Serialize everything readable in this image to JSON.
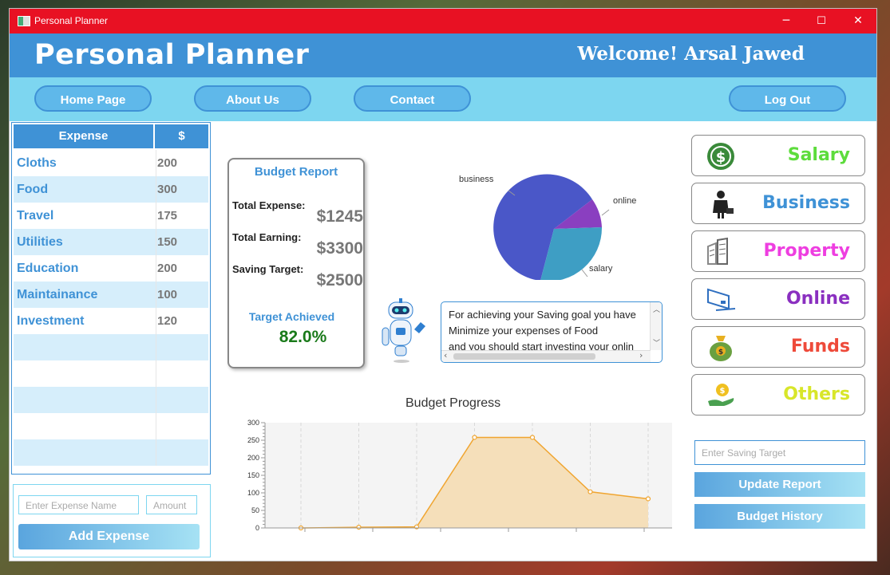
{
  "window": {
    "title": "Personal Planner",
    "minimize": "─",
    "maximize": "☐",
    "close": "✕"
  },
  "header": {
    "app_title": "Personal Planner",
    "welcome": "Welcome! Arsal Jawed"
  },
  "nav": {
    "home": "Home Page",
    "about": "About Us",
    "contact": "Contact",
    "logout": "Log Out"
  },
  "expense_table": {
    "col_name": "Expense",
    "col_value": "$",
    "rows": [
      {
        "name": "Cloths",
        "value": "200"
      },
      {
        "name": "Food",
        "value": "300"
      },
      {
        "name": "Travel",
        "value": "175"
      },
      {
        "name": "Utilities",
        "value": "150"
      },
      {
        "name": "Education",
        "value": "200"
      },
      {
        "name": "Maintainance",
        "value": "100"
      },
      {
        "name": "Investment",
        "value": "120"
      }
    ]
  },
  "add_expense": {
    "name_placeholder": "Enter Expense Name",
    "amount_placeholder": "Amount",
    "button": "Add Expense"
  },
  "budget_report": {
    "title": "Budget Report",
    "total_expense_label": "Total Expense:",
    "total_expense_value": "$1245",
    "total_earning_label": "Total Earning:",
    "total_earning_value": "$3300",
    "saving_target_label": "Saving Target:",
    "saving_target_value": "$2500",
    "target_achieved_label": "Target Achieved",
    "target_achieved_value": "82.0%"
  },
  "pie": {
    "labels": {
      "business": "business",
      "online": "online",
      "salary": "salary"
    },
    "colors": {
      "business": "#4a57c8",
      "online": "#8a3fc0",
      "salary": "#3e9ec4"
    }
  },
  "assistant_message": {
    "lines": [
      "For achieving your Saving goal you have",
      "Minimize your expenses of Food",
      "and you should start investing your onlin"
    ]
  },
  "chart_data": {
    "type": "area",
    "title": "Budget Progress",
    "xlabel": "",
    "ylabel": "",
    "ylim": [
      0,
      300
    ],
    "yticks": [
      0,
      50,
      100,
      150,
      200,
      250,
      300
    ],
    "x": [
      1,
      2,
      3,
      4,
      5,
      6,
      7
    ],
    "values": [
      0,
      2,
      3,
      258,
      258,
      103,
      83
    ],
    "color": "#f0a530",
    "fill": "#f5dfba"
  },
  "categories": [
    {
      "label": "Salary",
      "color": "#5ddc3c",
      "icon": "dollar-coin-icon"
    },
    {
      "label": "Business",
      "color": "#3f92d6",
      "icon": "businessman-icon"
    },
    {
      "label": "Property",
      "color": "#ee3ee0",
      "icon": "buildings-icon"
    },
    {
      "label": "Online",
      "color": "#8a2fc0",
      "icon": "laptop-icon"
    },
    {
      "label": "Funds",
      "color": "#ee4a3a",
      "icon": "money-bag-icon"
    },
    {
      "label": "Others",
      "color": "#d8e62a",
      "icon": "coin-hand-icon"
    }
  ],
  "saving": {
    "placeholder": "Enter Saving Target",
    "update_button": "Update Report",
    "history_button": "Budget History"
  }
}
